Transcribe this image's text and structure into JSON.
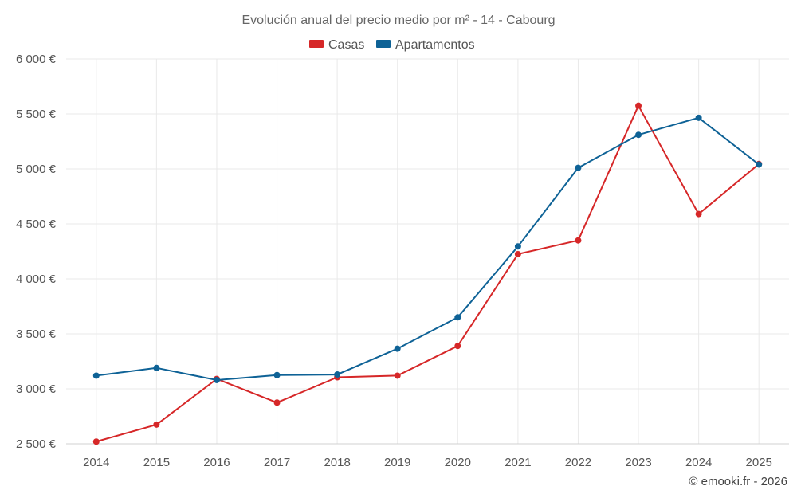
{
  "chart_data": {
    "type": "line",
    "title": "Evolución anual del precio medio por m² - 14 - Cabourg",
    "categories": [
      "2014",
      "2015",
      "2016",
      "2017",
      "2018",
      "2019",
      "2020",
      "2021",
      "2022",
      "2023",
      "2024",
      "2025"
    ],
    "series": [
      {
        "name": "Casas",
        "color": "#d62728",
        "values": [
          2520,
          2675,
          3090,
          2875,
          3105,
          3120,
          3390,
          4225,
          4350,
          5575,
          4590,
          5045
        ]
      },
      {
        "name": "Apartamentos",
        "color": "#0e6296",
        "values": [
          3120,
          3190,
          3080,
          3125,
          3130,
          3365,
          3650,
          4295,
          5010,
          5310,
          5465,
          5040
        ]
      }
    ],
    "ylim": [
      2500,
      6000
    ],
    "yticks": [
      "2 500 €",
      "3 000 €",
      "3 500 €",
      "4 000 €",
      "4 500 €",
      "5 000 €",
      "5 500 €",
      "6 000 €"
    ],
    "ytick_values": [
      2500,
      3000,
      3500,
      4000,
      4500,
      5000,
      5500,
      6000
    ],
    "xlabel": "",
    "ylabel": "",
    "grid": true,
    "legend_position": "top-center"
  },
  "credit": "© emooki.fr - 2026"
}
